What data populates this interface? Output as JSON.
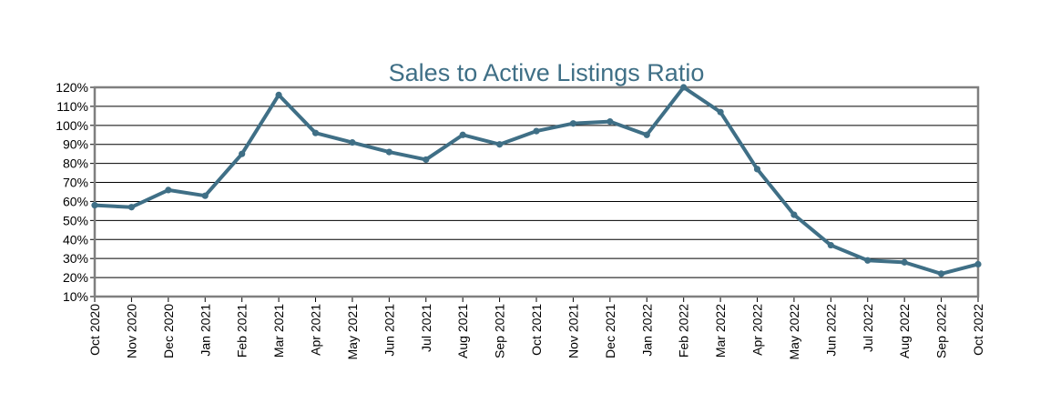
{
  "chart_data": {
    "type": "line",
    "title": "Sales to Active Listings Ratio",
    "xlabel": "",
    "ylabel": "",
    "ylim": [
      10,
      120
    ],
    "yticks": [
      10,
      20,
      30,
      40,
      50,
      60,
      70,
      80,
      90,
      100,
      110,
      120
    ],
    "ytick_labels": [
      "10%",
      "20%",
      "30%",
      "40%",
      "50%",
      "60%",
      "70%",
      "80%",
      "90%",
      "100%",
      "110%",
      "120%"
    ],
    "grid": true,
    "legend": "none",
    "categories": [
      "Oct 2020",
      "Nov 2020",
      "Dec 2020",
      "Jan 2021",
      "Feb 2021",
      "Mar 2021",
      "Apr 2021",
      "May 2021",
      "Jun 2021",
      "Jul 2021",
      "Aug 2021",
      "Sep 2021",
      "Oct 2021",
      "Nov 2021",
      "Dec 2021",
      "Jan 2022",
      "Feb 2022",
      "Mar 2022",
      "Apr 2022",
      "May 2022",
      "Jun 2022",
      "Jul 2022",
      "Aug 2022",
      "Sep 2022",
      "Oct 2022"
    ],
    "series": [
      {
        "color": "#3f6f86",
        "values": [
          58,
          57,
          66,
          63,
          85,
          116,
          96,
          91,
          86,
          82,
          95,
          90,
          97,
          101,
          102,
          95,
          120,
          107,
          77,
          53,
          37,
          29,
          28,
          22,
          27
        ]
      }
    ]
  }
}
